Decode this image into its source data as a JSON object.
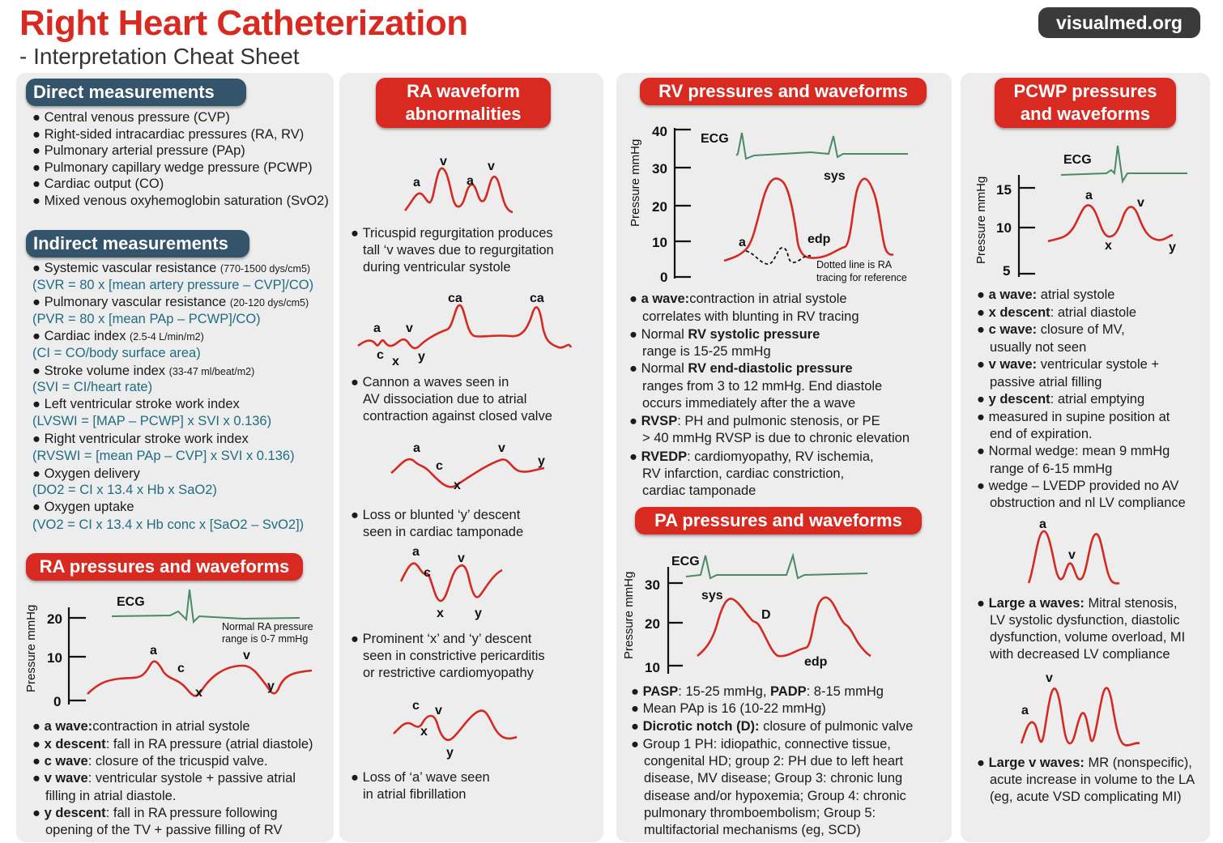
{
  "header": {
    "title": "Right Heart Catheterization",
    "subtitle": "- Interpretation Cheat Sheet",
    "site": "visualmed.org"
  },
  "direct": {
    "title": "Direct measurements",
    "items": [
      "Central venous pressure (CVP)",
      "Right-sided intracardiac pressures (RA, RV)",
      "Pulmonary arterial pressure (PAp)",
      "Pulmonary capillary wedge pressure (PCWP)",
      "Cardiac output (CO)",
      "Mixed venous oxyhemoglobin saturation (SvO2)"
    ]
  },
  "indirect": {
    "title": "Indirect measurements",
    "items": [
      {
        "name": "Systemic vascular resistance",
        "range": "(770-1500 dys/cm5)",
        "formula": "(SVR = 80 x [mean artery pressure – CVP]/CO)"
      },
      {
        "name": "Pulmonary vascular resistance",
        "range": "(20-120 dys/cm5)",
        "formula": "(PVR = 80 x [mean PAp – PCWP]/CO)"
      },
      {
        "name": "Cardiac index",
        "range": "(2.5-4 L/min/m2)",
        "formula": "(CI = CO/body surface area)"
      },
      {
        "name": "Stroke volume index",
        "range": "(33-47 ml/beat/m2)",
        "formula": "(SVI = CI/heart rate)"
      },
      {
        "name": "Left ventricular stroke work index",
        "range": "",
        "formula": "(LVSWI = [MAP – PCWP] x SVI x 0.136)"
      },
      {
        "name": "Right ventricular stroke work index",
        "range": "",
        "formula": "(RVSWI = [mean PAp – CVP] x SVI x 0.136)"
      },
      {
        "name": "Oxygen delivery",
        "range": "",
        "formula": "(DO2 = CI x 13.4 x Hb x SaO2)"
      },
      {
        "name": "Oxygen uptake",
        "range": "",
        "formula": "(VO2 = CI x 13.4 x Hb conc x [SaO2 – SvO2])"
      }
    ]
  },
  "ra": {
    "title": "RA pressures and waveforms",
    "chart": {
      "ylabel": "Pressure mmHg",
      "ticks": [
        "20",
        "10",
        "0"
      ],
      "ecg": "ECG",
      "note_lines": [
        "Normal RA pressure",
        "range is 0-7 mmHg"
      ],
      "labels": [
        "a",
        "c",
        "x",
        "v",
        "y"
      ]
    },
    "bullets": [
      {
        "b": "a wave:",
        "t": "contraction in atrial systole"
      },
      {
        "b": "x descent",
        "t": ": fall in RA pressure (atrial diastole)"
      },
      {
        "b": "c wave",
        "t": ": closure of the tricuspid valve."
      },
      {
        "b": "v wave",
        "t": ": ventricular systole + passive atrial"
      },
      {
        "b": "",
        "t": "filling in atrial diastole."
      },
      {
        "b": "y descent",
        "t": ": fall in RA pressure following"
      },
      {
        "b": "",
        "t": "opening of the TV + passive filling of RV"
      }
    ]
  },
  "abn": {
    "title_lines": [
      "RA waveform",
      "abnormalities"
    ],
    "w1": {
      "labels": [
        "a",
        "v",
        "a",
        "v"
      ],
      "text": [
        "Tricuspid regurgitation produces",
        "tall ‘v waves due to regurgitation",
        "during ventricular systole"
      ]
    },
    "w2": {
      "labels": [
        "a",
        "c",
        "x",
        "v",
        "y",
        "ca",
        "ca"
      ],
      "text": [
        "Cannon a waves seen in",
        "AV dissociation due to atrial",
        "contraction against closed valve"
      ]
    },
    "w3": {
      "labels": [
        "a",
        "c",
        "x",
        "v",
        "y"
      ],
      "text": [
        "Loss or blunted ‘y’ descent",
        "seen in cardiac tamponade"
      ]
    },
    "w4": {
      "labels": [
        "a",
        "c",
        "x",
        "v",
        "y"
      ],
      "text": [
        "Prominent ‘x’ and ‘y’ descent",
        "seen in constrictive pericarditis",
        "or restrictive cardiomyopathy"
      ]
    },
    "w5": {
      "labels": [
        "c",
        "v",
        "x",
        "y"
      ],
      "text": [
        "Loss of ‘a’ wave seen",
        "in atrial fibrillation"
      ]
    }
  },
  "rv": {
    "title": "RV pressures  and waveforms",
    "chart": {
      "ylabel": "Pressure mmHg",
      "ticks": [
        "40",
        "30",
        "20",
        "10",
        "0"
      ],
      "ecg": "ECG",
      "labels": [
        "sys",
        "edp",
        "a"
      ],
      "note_lines": [
        "Dotted line is RA",
        "tracing for reference"
      ]
    },
    "bullets": [
      [
        {
          "b": "a wave:",
          "t": "contraction in atrial systole"
        }
      ],
      [
        {
          "b": "",
          "t": "correlates with blunting in RV tracing"
        }
      ],
      [
        {
          "b": "",
          "t": "Normal "
        },
        {
          "b": "RV systolic pressure",
          "t": ""
        }
      ],
      [
        {
          "b": "",
          "t": "range is 15-25 mmHg"
        }
      ],
      [
        {
          "b": "",
          "t": "Normal "
        },
        {
          "b": "RV end-diastolic pressure",
          "t": ""
        }
      ],
      [
        {
          "b": "",
          "t": "ranges from 3 to 12 mmHg. End diastole"
        }
      ],
      [
        {
          "b": "",
          "t": "occurs immediately after the a wave"
        }
      ],
      [
        {
          "b": "RVSP",
          "t": ": PH and pulmonic stenosis, or PE"
        }
      ],
      [
        {
          "b": "",
          "t": "> 40 mmHg RVSP is due to chronic elevation"
        }
      ],
      [
        {
          "b": "RVEDP",
          "t": ": cardiomyopathy, RV ischemia,"
        }
      ],
      [
        {
          "b": "",
          "t": "RV infarction, cardiac constriction,"
        }
      ],
      [
        {
          "b": "",
          "t": "cardiac tamponade"
        }
      ]
    ]
  },
  "pa": {
    "title": "PA pressures and waveforms",
    "chart": {
      "ylabel": "Pressure mmHg",
      "ticks": [
        "30",
        "20",
        "10"
      ],
      "ecg": "ECG",
      "labels": [
        "sys",
        "D",
        "edp"
      ]
    },
    "bullets": [
      [
        {
          "b": "PASP",
          "t": ": 15-25 mmHg, "
        },
        {
          "b": "PADP",
          "t": ": 8-15 mmHg"
        }
      ],
      [
        {
          "b": "",
          "t": "Mean PAp is 16 (10-22 mmHg)"
        }
      ],
      [
        {
          "b": "Dicrotic notch (D):",
          "t": " closure of pulmonic valve"
        }
      ],
      [
        {
          "b": "",
          "t": "Group 1 PH: idiopathic, connective tissue,"
        }
      ],
      [
        {
          "b": "",
          "t": "congenital HD; group 2: PH due to left heart"
        }
      ],
      [
        {
          "b": "",
          "t": "disease, MV disease; Group 3: chronic lung"
        }
      ],
      [
        {
          "b": "",
          "t": "disease and/or hypoxemia; Group 4: chronic"
        }
      ],
      [
        {
          "b": "",
          "t": "pulmonary thromboembolism; Group 5:"
        }
      ],
      [
        {
          "b": "",
          "t": "multifactorial mechanisms (eg, SCD)"
        }
      ]
    ]
  },
  "pcwp": {
    "title_lines": [
      "PCWP pressures",
      "and waveforms"
    ],
    "chart": {
      "ylabel": "Pressure mmHg",
      "ticks": [
        "15",
        "10",
        "5"
      ],
      "ecg": "ECG",
      "labels": [
        "a",
        "x",
        "v",
        "y"
      ]
    },
    "bullets": [
      [
        {
          "b": "a wave:",
          "t": " atrial systole"
        }
      ],
      [
        {
          "b": "x descent",
          "t": ": atrial diastole"
        }
      ],
      [
        {
          "b": "c wave:",
          "t": " closure of MV,"
        }
      ],
      [
        {
          "b": "",
          "t": "usually not seen"
        }
      ],
      [
        {
          "b": "v wave:",
          "t": " ventricular systole +"
        }
      ],
      [
        {
          "b": "",
          "t": "passive atrial filling"
        }
      ],
      [
        {
          "b": "y descent",
          "t": ": atrial emptying"
        }
      ],
      [
        {
          "b": "",
          "t": "measured in  supine position at"
        }
      ],
      [
        {
          "b": "",
          "t": "end of expiration."
        }
      ],
      [
        {
          "b": "",
          "t": "Normal wedge: mean 9 mmHg"
        }
      ],
      [
        {
          "b": "",
          "t": "range of 6-15 mmHg"
        }
      ],
      [
        {
          "b": "",
          "t": "wedge – LVEDP provided no AV"
        }
      ],
      [
        {
          "b": "",
          "t": "obstruction and nl LV compliance"
        }
      ]
    ],
    "large_a": {
      "labels": [
        "a",
        "v"
      ],
      "text": [
        [
          {
            "b": "Large a waves:",
            "t": " Mitral stenosis,"
          }
        ],
        [
          {
            "b": "",
            "t": "LV systolic dysfunction, diastolic"
          }
        ],
        [
          {
            "b": "",
            "t": "dysfunction, volume overload, MI"
          }
        ],
        [
          {
            "b": "",
            "t": "with decreased LV compliance"
          }
        ]
      ]
    },
    "large_v": {
      "labels": [
        "v",
        "a"
      ],
      "text": [
        [
          {
            "b": "Large v waves:",
            "t": " MR (nonspecific),"
          }
        ],
        [
          {
            "b": "",
            "t": "acute increase in volume to the LA"
          }
        ],
        [
          {
            "b": "",
            "t": "(eg, acute VSD complicating MI)"
          }
        ]
      ]
    }
  }
}
